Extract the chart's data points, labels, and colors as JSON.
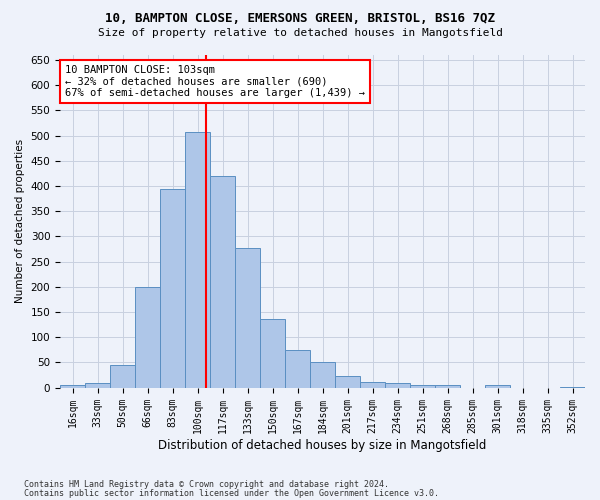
{
  "title_line1": "10, BAMPTON CLOSE, EMERSONS GREEN, BRISTOL, BS16 7QZ",
  "title_line2": "Size of property relative to detached houses in Mangotsfield",
  "xlabel": "Distribution of detached houses by size in Mangotsfield",
  "ylabel": "Number of detached properties",
  "categories": [
    "16sqm",
    "33sqm",
    "50sqm",
    "66sqm",
    "83sqm",
    "100sqm",
    "117sqm",
    "133sqm",
    "150sqm",
    "167sqm",
    "184sqm",
    "201sqm",
    "217sqm",
    "234sqm",
    "251sqm",
    "268sqm",
    "285sqm",
    "301sqm",
    "318sqm",
    "335sqm",
    "352sqm"
  ],
  "values": [
    5,
    10,
    45,
    200,
    395,
    507,
    420,
    277,
    137,
    75,
    50,
    22,
    12,
    10,
    6,
    5,
    0,
    6,
    0,
    0,
    2
  ],
  "bar_color": "#aec6e8",
  "bar_edge_color": "#5a8fc2",
  "bar_width": 1.0,
  "vline_x_index": 5.35,
  "vline_color": "red",
  "annotation_line1": "10 BAMPTON CLOSE: 103sqm",
  "annotation_line2": "← 32% of detached houses are smaller (690)",
  "annotation_line3": "67% of semi-detached houses are larger (1,439) →",
  "annotation_box_color": "white",
  "annotation_box_edge_color": "red",
  "ylim": [
    0,
    660
  ],
  "yticks": [
    0,
    50,
    100,
    150,
    200,
    250,
    300,
    350,
    400,
    450,
    500,
    550,
    600,
    650
  ],
  "footnote_line1": "Contains HM Land Registry data © Crown copyright and database right 2024.",
  "footnote_line2": "Contains public sector information licensed under the Open Government Licence v3.0.",
  "bg_color": "#eef2fa",
  "grid_color": "#c8d0e0"
}
